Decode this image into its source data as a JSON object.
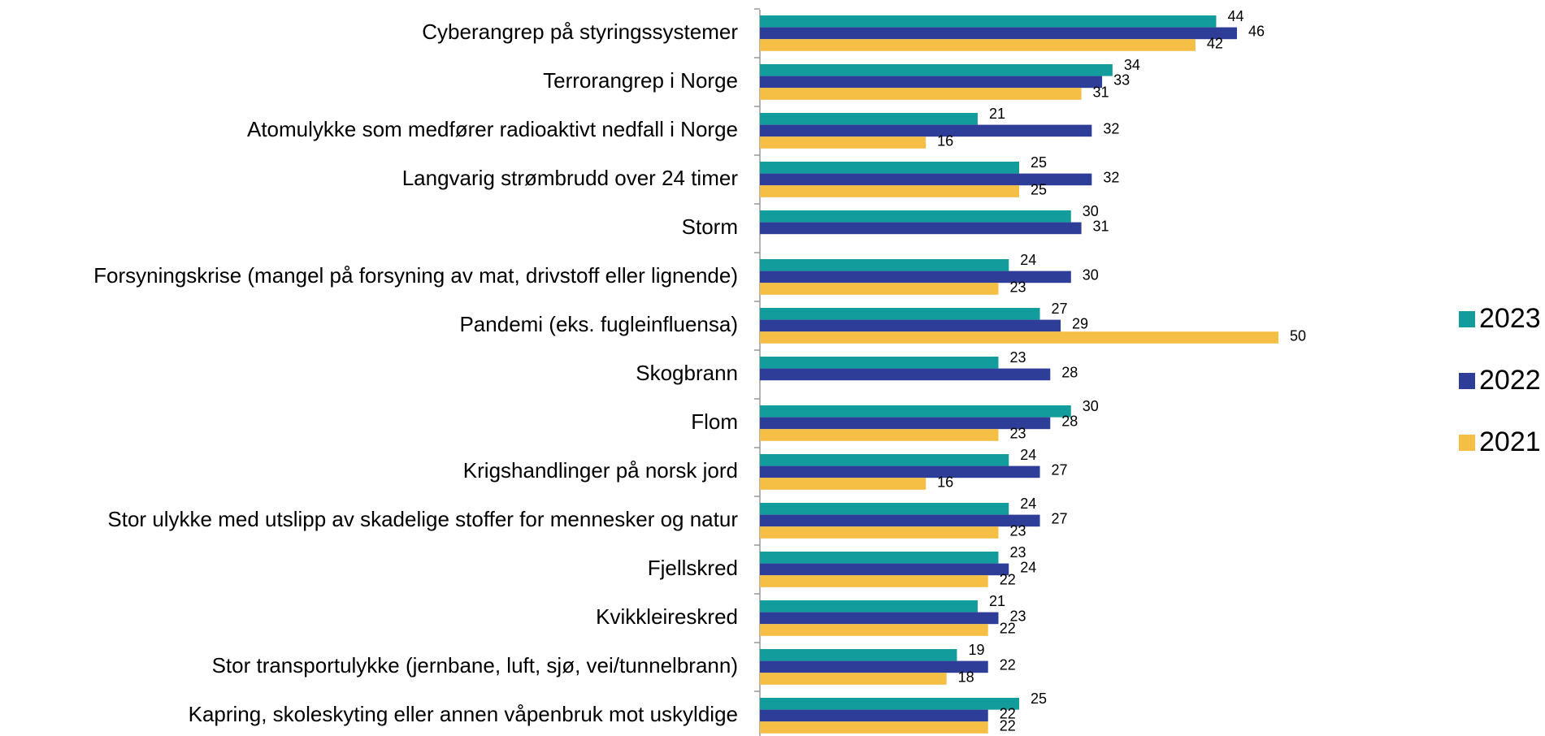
{
  "chart_data": {
    "type": "hbar",
    "categories": [
      "Cyberangrep på styringssystemer",
      "Terrorangrep i Norge",
      "Atomulykke som medfører radioaktivt nedfall i Norge",
      "Langvarig strømbrudd over 24 timer",
      "Storm",
      "Forsyningskrise (mangel på forsyning av mat, drivstoff eller lignende)",
      "Pandemi (eks. fugleinfluensa)",
      "Skogbrann",
      "Flom",
      "Krigshandlinger på norsk jord",
      "Stor ulykke med utslipp av skadelige stoffer for mennesker og natur",
      "Fjellskred",
      "Kvikkleireskred",
      "Stor transportulykke (jernbane, luft, sjø, vei/tunnelbrann)",
      "Kapring, skoleskyting eller annen våpenbruk mot uskyldige"
    ],
    "series": [
      {
        "name": "2023",
        "color": "#139c9c",
        "values": [
          44,
          34,
          21,
          25,
          30,
          24,
          27,
          23,
          30,
          24,
          24,
          23,
          21,
          19,
          25
        ]
      },
      {
        "name": "2022",
        "color": "#2e3d98",
        "values": [
          46,
          33,
          32,
          32,
          31,
          30,
          29,
          28,
          28,
          27,
          27,
          24,
          23,
          22,
          22
        ]
      },
      {
        "name": "2021",
        "color": "#f4bf44",
        "values": [
          42,
          31,
          16,
          25,
          null,
          23,
          50,
          null,
          23,
          16,
          23,
          22,
          22,
          18,
          22
        ]
      }
    ],
    "legend": "right"
  }
}
